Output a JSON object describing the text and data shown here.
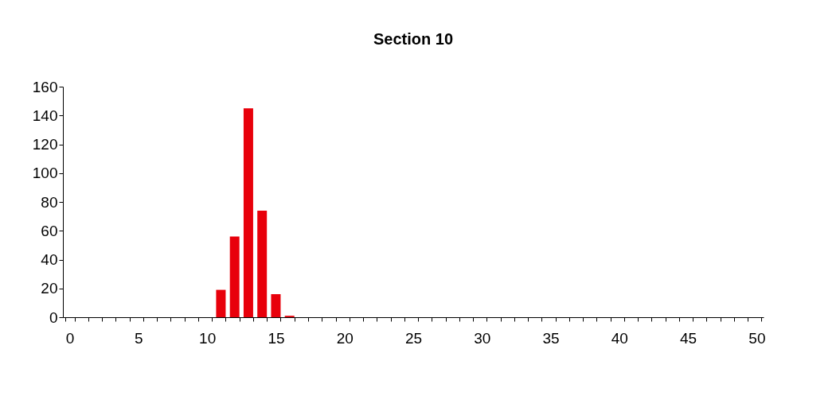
{
  "chart_data": {
    "type": "bar",
    "title": "Section 10",
    "categories": [
      "0",
      null,
      null,
      null,
      null,
      "5",
      null,
      null,
      null,
      null,
      "10",
      null,
      null,
      null,
      null,
      "15",
      null,
      null,
      null,
      null,
      "20",
      null,
      null,
      null,
      null,
      "25",
      null,
      null,
      null,
      null,
      "30",
      null,
      null,
      null,
      null,
      "35",
      null,
      null,
      null,
      null,
      "40",
      null,
      null,
      null,
      null,
      "45",
      null,
      null,
      null,
      null,
      "50"
    ],
    "values": [
      0,
      0,
      0,
      0,
      0,
      0,
      0,
      0,
      0,
      0,
      0,
      19,
      56,
      145,
      74,
      16,
      1,
      0,
      0,
      0,
      0,
      0,
      0,
      0,
      0,
      0,
      0,
      0,
      0,
      0,
      0,
      0,
      0,
      0,
      0,
      0,
      0,
      0,
      0,
      0,
      0,
      0,
      0,
      0,
      0,
      0,
      0,
      0,
      0,
      0,
      0
    ],
    "color": "#e8000b",
    "ylim": [
      0,
      160
    ],
    "yticks": [
      0,
      20,
      40,
      60,
      80,
      100,
      120,
      140,
      160
    ],
    "grid": false
  }
}
